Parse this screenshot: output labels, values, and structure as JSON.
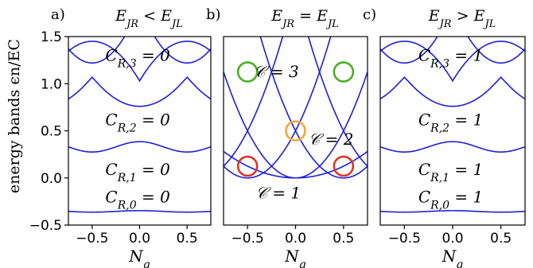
{
  "figure": {
    "ylabel": "energy bands ϵn/EC"
  },
  "chart_data": [
    {
      "type": "line",
      "panel_label": "a)",
      "title": "E_JR < E_JL",
      "xlabel": "N_g",
      "ylabel": "energy bands ϵn/EC",
      "xlim": [
        -0.75,
        0.75
      ],
      "ylim": [
        -0.5,
        1.5
      ],
      "xticks": [
        -0.5,
        0.0,
        0.5
      ],
      "xtick_labels": [
        "−0.5",
        "0.0",
        "0.5"
      ],
      "yticks": [
        -0.5,
        0.0,
        0.5,
        1.0,
        1.5
      ],
      "ytick_labels": [
        "−0.5",
        "0.0",
        "0.5",
        "1.0",
        "1.5"
      ],
      "series_color": "#1f1fd6",
      "band_params": {
        "Ej": 0.33,
        "Er": 0.12
      },
      "annotations": [
        {
          "text": "C_R,3 = 0",
          "x": -0.02,
          "y": 1.3,
          "color": "#000000"
        },
        {
          "text": "C_R,2 = 0",
          "x": -0.02,
          "y": 0.62,
          "color": "#000000"
        },
        {
          "text": "C_R,1 = 0",
          "x": -0.02,
          "y": 0.09,
          "color": "#000000"
        },
        {
          "text": "C_R,0 = 0",
          "x": -0.02,
          "y": -0.2,
          "color": "#000000"
        }
      ],
      "circles": []
    },
    {
      "type": "line",
      "panel_label": "b)",
      "title": "E_JR = E_JL",
      "xlabel": "N_g",
      "xlim": [
        -0.75,
        0.75
      ],
      "ylim": [
        -0.5,
        1.5
      ],
      "xticks": [
        -0.5,
        0.0,
        0.5
      ],
      "xtick_labels": [
        "−0.5",
        "0.0",
        "0.5"
      ],
      "series_color": "#1f1fd6",
      "band_params": {
        "Ej": 0.0,
        "Er": 0.0
      },
      "annotations": [
        {
          "text": "C = 3",
          "x": -0.2,
          "y": 1.13,
          "color": "#4caf2a"
        },
        {
          "text": "C = 2",
          "x": 0.37,
          "y": 0.41,
          "color": "#f4a63c"
        },
        {
          "text": "C = 1",
          "x": -0.18,
          "y": -0.16,
          "color": "#d9382a"
        }
      ],
      "circles": [
        {
          "x": -0.5,
          "y": 1.125,
          "color": "#4caf2a"
        },
        {
          "x": 0.5,
          "y": 1.125,
          "color": "#4caf2a"
        },
        {
          "x": 0.0,
          "y": 0.5,
          "color": "#f4a63c"
        },
        {
          "x": -0.5,
          "y": 0.125,
          "color": "#d9382a"
        },
        {
          "x": 0.5,
          "y": 0.125,
          "color": "#d9382a"
        }
      ]
    },
    {
      "type": "line",
      "panel_label": "c)",
      "title": "E_JR > E_JL",
      "xlabel": "N_g",
      "xlim": [
        -0.75,
        0.75
      ],
      "ylim": [
        -0.5,
        1.5
      ],
      "xticks": [
        -0.5,
        0.0,
        0.5
      ],
      "xtick_labels": [
        "−0.5",
        "0.0",
        "0.5"
      ],
      "series_color": "#1f1fd6",
      "band_params": {
        "Ej": 0.33,
        "Er": 0.12
      },
      "annotations": [
        {
          "text": "C_R,3 = 1",
          "x": -0.02,
          "y": 1.3,
          "color": "#000000"
        },
        {
          "text": "C_R,2 = 1",
          "x": -0.02,
          "y": 0.62,
          "color": "#000000"
        },
        {
          "text": "C_R,1 = 1",
          "x": -0.02,
          "y": 0.09,
          "color": "#000000"
        },
        {
          "text": "C_R,0 = 1",
          "x": -0.02,
          "y": -0.2,
          "color": "#000000"
        }
      ],
      "circles": []
    }
  ]
}
